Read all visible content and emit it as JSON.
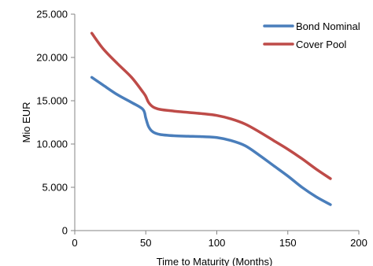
{
  "chart_data": {
    "type": "line",
    "title": "",
    "xlabel": "Time  to Maturity (Months)",
    "ylabel": "Mio EUR",
    "xlim": [
      0,
      200
    ],
    "ylim": [
      0,
      25000
    ],
    "x_ticks": [
      0,
      50,
      100,
      150,
      200
    ],
    "y_ticks": [
      0,
      5000,
      10000,
      15000,
      20000,
      25000
    ],
    "x_tick_labels": [
      "0",
      "50",
      "100",
      "150",
      "200"
    ],
    "y_tick_labels": [
      "0",
      "5.000",
      "10.000",
      "15.000",
      "20.000",
      "25.000"
    ],
    "grid": false,
    "legend_position": "top-right",
    "series": [
      {
        "name": "Bond Nominal",
        "color": "#4a7ebb",
        "x": [
          12,
          20,
          30,
          40,
          48,
          50,
          52,
          55,
          60,
          70,
          80,
          90,
          100,
          110,
          120,
          130,
          140,
          150,
          160,
          170,
          180
        ],
        "y": [
          17700,
          16800,
          15700,
          14800,
          14000,
          13000,
          12000,
          11400,
          11100,
          10950,
          10900,
          10850,
          10750,
          10400,
          9800,
          8700,
          7500,
          6300,
          5000,
          3900,
          3000
        ]
      },
      {
        "name": "Cover Pool",
        "color": "#be4b48",
        "x": [
          12,
          20,
          30,
          40,
          48,
          50,
          52,
          55,
          60,
          70,
          80,
          90,
          100,
          110,
          120,
          130,
          140,
          150,
          160,
          170,
          180
        ],
        "y": [
          22800,
          21000,
          19300,
          17700,
          16000,
          15500,
          14800,
          14300,
          14000,
          13800,
          13650,
          13500,
          13300,
          12900,
          12300,
          11400,
          10400,
          9400,
          8300,
          7100,
          6000
        ]
      }
    ]
  }
}
